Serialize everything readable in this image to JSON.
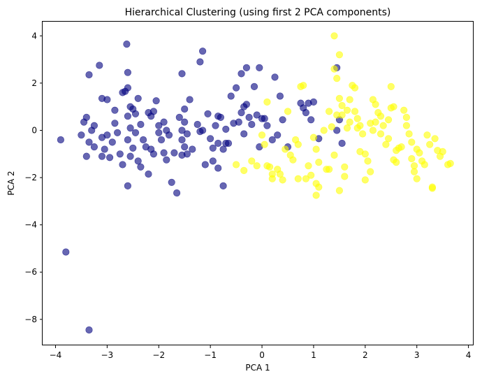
{
  "chart_data": {
    "type": "scatter",
    "title": "Hierarchical Clustering (using first 2 PCA components)",
    "xlabel": "PCA 1",
    "ylabel": "PCA 2",
    "xlim": [
      -4.25,
      4.1
    ],
    "ylim": [
      -9.1,
      4.6
    ],
    "xticks": [
      -4,
      -3,
      -2,
      -1,
      0,
      1,
      2,
      3,
      4
    ],
    "yticks": [
      -8,
      -6,
      -4,
      -2,
      0,
      2,
      4
    ],
    "grid": false,
    "legend": "none",
    "colors": {
      "cluster_0": "#00007f",
      "cluster_1": "#ffff00"
    },
    "series": [
      {
        "values": [
          [
            -3.9,
            -0.4
          ],
          [
            -3.8,
            -5.15
          ],
          [
            -3.35,
            -8.45
          ],
          [
            -3.35,
            2.35
          ],
          [
            -3.15,
            2.75
          ],
          [
            -3.1,
            1.35
          ],
          [
            -3.0,
            1.3
          ],
          [
            -2.85,
            0.85
          ],
          [
            -3.45,
            0.35
          ],
          [
            -3.4,
            0.55
          ],
          [
            -3.3,
            0.0
          ],
          [
            -3.25,
            0.2
          ],
          [
            -3.5,
            -0.2
          ],
          [
            -3.35,
            -0.5
          ],
          [
            -3.25,
            -0.7
          ],
          [
            -3.4,
            -1.1
          ],
          [
            -3.1,
            -0.3
          ],
          [
            -3.0,
            -0.2
          ],
          [
            -2.9,
            -0.5
          ],
          [
            -3.05,
            -0.8
          ],
          [
            -3.1,
            -1.1
          ],
          [
            -2.95,
            -1.15
          ],
          [
            -2.85,
            0.3
          ],
          [
            -2.8,
            -0.1
          ],
          [
            -2.75,
            -1.0
          ],
          [
            -2.7,
            -1.45
          ],
          [
            -2.7,
            1.6
          ],
          [
            -2.65,
            1.65
          ],
          [
            -2.6,
            1.8
          ],
          [
            -2.6,
            2.45
          ],
          [
            -2.62,
            3.65
          ],
          [
            -2.55,
            1.0
          ],
          [
            -2.5,
            0.9
          ],
          [
            -2.45,
            0.7
          ],
          [
            -2.6,
            0.6
          ],
          [
            -2.55,
            0.1
          ],
          [
            -2.45,
            -0.1
          ],
          [
            -2.6,
            -0.4
          ],
          [
            -2.5,
            -0.75
          ],
          [
            -2.55,
            -1.1
          ],
          [
            -2.4,
            -1.3
          ],
          [
            -2.35,
            -1.55
          ],
          [
            -2.6,
            -2.35
          ],
          [
            -2.4,
            1.35
          ],
          [
            -2.35,
            0.25
          ],
          [
            -2.3,
            -0.4
          ],
          [
            -2.25,
            -0.7
          ],
          [
            -2.15,
            -0.8
          ],
          [
            -2.1,
            -1.0
          ],
          [
            -2.2,
            -1.85
          ],
          [
            -2.2,
            0.75
          ],
          [
            -2.15,
            0.6
          ],
          [
            -2.1,
            0.8
          ],
          [
            -2.05,
            1.25
          ],
          [
            -2.0,
            0.2
          ],
          [
            -2.0,
            -0.1
          ],
          [
            -1.95,
            -0.4
          ],
          [
            -1.9,
            0.35
          ],
          [
            -1.85,
            0.0
          ],
          [
            -1.8,
            -0.2
          ],
          [
            -1.9,
            -0.95
          ],
          [
            -1.85,
            -1.25
          ],
          [
            -1.7,
            -0.95
          ],
          [
            -1.75,
            -2.2
          ],
          [
            -1.65,
            -2.65
          ],
          [
            -1.6,
            0.55
          ],
          [
            -1.5,
            0.35
          ],
          [
            -1.55,
            0.0
          ],
          [
            -1.45,
            -0.15
          ],
          [
            -1.55,
            -0.4
          ],
          [
            -1.5,
            -0.7
          ],
          [
            -1.55,
            -1.05
          ],
          [
            -1.45,
            -1.0
          ],
          [
            -1.5,
            0.9
          ],
          [
            -1.55,
            2.4
          ],
          [
            -1.4,
            1.3
          ],
          [
            -1.35,
            -0.8
          ],
          [
            -1.25,
            0.25
          ],
          [
            -1.2,
            -0.05
          ],
          [
            -1.15,
            0.0
          ],
          [
            -1.2,
            2.9
          ],
          [
            -1.15,
            3.35
          ],
          [
            -1.05,
            0.7
          ],
          [
            -1.0,
            -0.35
          ],
          [
            -0.95,
            -0.75
          ],
          [
            -0.9,
            0.2
          ],
          [
            -0.85,
            0.6
          ],
          [
            -0.8,
            0.55
          ],
          [
            -0.85,
            -0.55
          ],
          [
            -1.1,
            -1.45
          ],
          [
            -0.95,
            -1.3
          ],
          [
            -0.85,
            -1.6
          ],
          [
            -0.75,
            -0.8
          ],
          [
            -0.7,
            -0.55
          ],
          [
            -0.65,
            -0.55
          ],
          [
            -0.75,
            -2.35
          ],
          [
            -0.7,
            0.05
          ],
          [
            -0.55,
            0.3
          ],
          [
            -0.6,
            1.45
          ],
          [
            -0.5,
            1.8
          ],
          [
            -0.4,
            0.75
          ],
          [
            -0.35,
            1.0
          ],
          [
            -0.45,
            0.35
          ],
          [
            -0.35,
            -0.15
          ],
          [
            -0.4,
            2.4
          ],
          [
            -0.3,
            1.1
          ],
          [
            -0.25,
            0.55
          ],
          [
            -0.3,
            2.65
          ],
          [
            -0.2,
            0.25
          ],
          [
            -0.15,
            1.85
          ],
          [
            -0.1,
            0.65
          ],
          [
            -0.05,
            2.65
          ],
          [
            0.0,
            0.5
          ],
          [
            0.05,
            0.5
          ],
          [
            0.1,
            0.2
          ],
          [
            -0.05,
            -0.7
          ],
          [
            0.2,
            -0.4
          ],
          [
            0.25,
            2.25
          ],
          [
            0.35,
            1.45
          ],
          [
            0.4,
            0.45
          ],
          [
            0.3,
            -0.2
          ],
          [
            0.5,
            -0.7
          ],
          [
            0.75,
            1.15
          ],
          [
            0.8,
            0.95
          ],
          [
            0.85,
            0.75
          ],
          [
            0.9,
            1.15
          ],
          [
            0.95,
            0.45
          ],
          [
            1.0,
            1.2
          ],
          [
            1.1,
            -0.35
          ],
          [
            1.45,
            2.65
          ],
          [
            1.5,
            0.45
          ],
          [
            1.45,
            0.0
          ],
          [
            1.55,
            -0.55
          ]
        ]
      },
      {
        "values": [
          [
            -0.5,
            -1.45
          ],
          [
            -0.35,
            -1.7
          ],
          [
            -0.2,
            -1.3
          ],
          [
            -0.1,
            -1.5
          ],
          [
            0.0,
            -0.2
          ],
          [
            0.05,
            -0.6
          ],
          [
            0.1,
            1.2
          ],
          [
            0.1,
            -1.5
          ],
          [
            0.15,
            -1.55
          ],
          [
            0.2,
            -1.85
          ],
          [
            0.2,
            -2.05
          ],
          [
            0.3,
            -1.65
          ],
          [
            0.35,
            -1.85
          ],
          [
            0.4,
            -2.1
          ],
          [
            0.45,
            -0.8
          ],
          [
            0.5,
            0.8
          ],
          [
            0.55,
            -1.05
          ],
          [
            0.6,
            -1.25
          ],
          [
            0.65,
            -0.4
          ],
          [
            0.7,
            -0.6
          ],
          [
            0.7,
            -2.05
          ],
          [
            0.75,
            1.85
          ],
          [
            0.8,
            1.9
          ],
          [
            0.85,
            -2.05
          ],
          [
            0.9,
            -1.5
          ],
          [
            0.95,
            -1.9
          ],
          [
            1.0,
            -0.3
          ],
          [
            1.05,
            -0.8
          ],
          [
            1.05,
            -2.25
          ],
          [
            1.1,
            -1.35
          ],
          [
            1.05,
            -2.75
          ],
          [
            1.1,
            -2.4
          ],
          [
            1.2,
            0.0
          ],
          [
            1.25,
            -1.65
          ],
          [
            1.3,
            -1.65
          ],
          [
            1.3,
            0.8
          ],
          [
            1.35,
            0.15
          ],
          [
            1.4,
            -1.05
          ],
          [
            1.45,
            0.65
          ],
          [
            1.4,
            2.6
          ],
          [
            1.4,
            4.0
          ],
          [
            1.45,
            2.2
          ],
          [
            1.5,
            3.2
          ],
          [
            1.5,
            1.35
          ],
          [
            1.55,
            1.05
          ],
          [
            1.55,
            0.65
          ],
          [
            1.6,
            -1.55
          ],
          [
            1.5,
            -2.55
          ],
          [
            1.6,
            -1.95
          ],
          [
            1.65,
            0.1
          ],
          [
            1.7,
            0.35
          ],
          [
            1.75,
            1.9
          ],
          [
            1.8,
            1.8
          ],
          [
            1.7,
            1.3
          ],
          [
            1.8,
            0.8
          ],
          [
            1.85,
            0.1
          ],
          [
            1.9,
            0.2
          ],
          [
            1.95,
            -0.15
          ],
          [
            1.9,
            -0.9
          ],
          [
            2.0,
            -1.0
          ],
          [
            2.05,
            -1.3
          ],
          [
            2.0,
            -2.1
          ],
          [
            2.1,
            -1.75
          ],
          [
            2.1,
            0.3
          ],
          [
            2.15,
            0.0
          ],
          [
            2.15,
            1.3
          ],
          [
            2.2,
            1.1
          ],
          [
            2.25,
            0.75
          ],
          [
            2.3,
            0.6
          ],
          [
            2.35,
            0.2
          ],
          [
            2.4,
            -0.6
          ],
          [
            2.45,
            -0.35
          ],
          [
            2.45,
            0.45
          ],
          [
            2.5,
            0.95
          ],
          [
            2.55,
            1.0
          ],
          [
            2.5,
            1.85
          ],
          [
            2.55,
            -1.25
          ],
          [
            2.6,
            -1.35
          ],
          [
            2.6,
            -0.85
          ],
          [
            2.65,
            -0.75
          ],
          [
            2.7,
            -0.7
          ],
          [
            2.75,
            0.85
          ],
          [
            2.8,
            0.55
          ],
          [
            2.8,
            0.2
          ],
          [
            2.85,
            -0.15
          ],
          [
            2.9,
            -0.5
          ],
          [
            2.9,
            -1.2
          ],
          [
            2.95,
            -1.5
          ],
          [
            3.0,
            -0.8
          ],
          [
            3.05,
            -0.95
          ],
          [
            3.1,
            -1.3
          ],
          [
            3.15,
            -1.45
          ],
          [
            3.2,
            -0.2
          ],
          [
            3.25,
            -0.6
          ],
          [
            3.3,
            -2.45
          ],
          [
            3.35,
            -0.35
          ],
          [
            3.4,
            -0.85
          ],
          [
            3.45,
            -1.1
          ],
          [
            3.5,
            -0.9
          ],
          [
            3.6,
            -1.45
          ],
          [
            3.65,
            -1.4
          ],
          [
            3.0,
            -2.05
          ],
          [
            2.95,
            -1.75
          ],
          [
            3.3,
            -2.4
          ],
          [
            1.65,
            0.85
          ],
          [
            1.85,
            0.5
          ],
          [
            2.2,
            0.35
          ],
          [
            2.3,
            -0.15
          ]
        ]
      }
    ]
  }
}
